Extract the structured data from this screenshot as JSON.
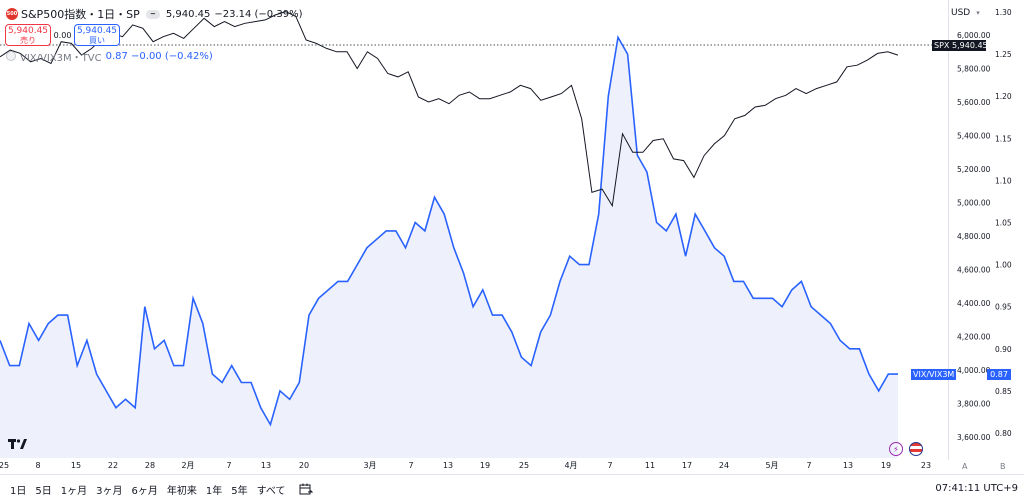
{
  "legend": {
    "symbol_logo": "500",
    "symbol_title": "S&P500指数・1日・SP",
    "collapse_icon": "minus-icon",
    "price": "5,940.45",
    "change": "−23.14 (−0.39%)",
    "sell_price": "5,940.45",
    "sell_label": "売り",
    "spread": "0.00",
    "buy_price": "5,940.45",
    "buy_label": "買い",
    "vix_name": "VIX/VIX3M・TVC",
    "vix_values": "0.87  −0.00 (−0.42%)"
  },
  "axis": {
    "currency": "USD",
    "left_ticks": [
      "6,000.00",
      "5,800.00",
      "5,600.00",
      "5,400.00",
      "5,200.00",
      "5,000.00",
      "4,800.00",
      "4,600.00",
      "4,400.00",
      "4,200.00",
      "4,000.00",
      "3,800.00",
      "3,600.00"
    ],
    "right_ticks": [
      "1.30",
      "1.25",
      "1.20",
      "1.15",
      "1.10",
      "1.05",
      "1.00",
      "0.95",
      "0.90",
      "0.85",
      "0.80"
    ],
    "x_ticks": [
      "25",
      "8",
      "15",
      "22",
      "28",
      "2月",
      "7",
      "13",
      "20",
      "3月",
      "7",
      "13",
      "19",
      "25",
      "4月",
      "7",
      "11",
      "17",
      "24",
      "5月",
      "7",
      "13",
      "19",
      "23"
    ],
    "mode_a": "A",
    "mode_b": "B"
  },
  "tags": {
    "spx_name": "SPX",
    "spx_price": "5,940.45",
    "vix_name": "VIX/VIX3M",
    "vix_value": "0.87"
  },
  "toolbar": {
    "ranges": [
      "1日",
      "5日",
      "1ヶ月",
      "3ヶ月",
      "6ヶ月",
      "年初来",
      "1年",
      "5年",
      "すべて"
    ],
    "clock": "07:41:11 UTC+9"
  },
  "colors": {
    "spx_line": "#131722",
    "vix_line": "#2962ff",
    "vix_fill": "#eef1fb",
    "sell": "#f23645",
    "buy": "#2962ff"
  },
  "chart_data": {
    "type": "line",
    "series": [
      {
        "name": "SPX",
        "axis": "left",
        "values": [
          5870,
          5910,
          5890,
          5840,
          5860,
          5830,
          5960,
          5950,
          5880,
          5920,
          5980,
          6010,
          5990,
          6060,
          6040,
          5960,
          5990,
          6010,
          5980,
          6040,
          6100,
          6050,
          6080,
          6050,
          6070,
          6080,
          6090,
          6120,
          6140,
          6110,
          5970,
          5950,
          5920,
          5900,
          5900,
          5800,
          5900,
          5860,
          5770,
          5750,
          5780,
          5630,
          5600,
          5620,
          5590,
          5640,
          5660,
          5620,
          5620,
          5640,
          5660,
          5700,
          5680,
          5610,
          5630,
          5650,
          5700,
          5500,
          5060,
          5080,
          4980,
          5410,
          5300,
          5300,
          5370,
          5380,
          5260,
          5250,
          5150,
          5280,
          5350,
          5400,
          5500,
          5520,
          5570,
          5580,
          5620,
          5640,
          5680,
          5650,
          5680,
          5700,
          5720,
          5810,
          5820,
          5850,
          5890,
          5900,
          5880
        ],
        "last": "5,940.45"
      },
      {
        "name": "VIX/VIX3M",
        "axis": "right",
        "values": [
          0.91,
          0.88,
          0.88,
          0.93,
          0.91,
          0.93,
          0.94,
          0.94,
          0.88,
          0.91,
          0.87,
          0.85,
          0.83,
          0.84,
          0.83,
          0.95,
          0.9,
          0.91,
          0.88,
          0.88,
          0.96,
          0.93,
          0.87,
          0.86,
          0.88,
          0.86,
          0.86,
          0.83,
          0.81,
          0.85,
          0.84,
          0.86,
          0.94,
          0.96,
          0.97,
          0.98,
          0.98,
          1.0,
          1.02,
          1.03,
          1.04,
          1.04,
          1.02,
          1.05,
          1.04,
          1.08,
          1.06,
          1.02,
          0.99,
          0.95,
          0.97,
          0.94,
          0.94,
          0.92,
          0.89,
          0.88,
          0.92,
          0.94,
          0.98,
          1.01,
          1.0,
          1.0,
          1.06,
          1.2,
          1.27,
          1.25,
          1.13,
          1.11,
          1.05,
          1.04,
          1.06,
          1.01,
          1.06,
          1.04,
          1.02,
          1.01,
          0.98,
          0.98,
          0.96,
          0.96,
          0.96,
          0.95,
          0.97,
          0.98,
          0.95,
          0.94,
          0.93,
          0.91,
          0.9,
          0.9,
          0.87,
          0.85,
          0.87,
          0.87
        ],
        "last": "0.87"
      }
    ],
    "ylim_left": [
      3500,
      6150
    ],
    "ylim_right": [
      0.77,
      1.31
    ],
    "grid": false,
    "reference_line": 5940.45
  }
}
